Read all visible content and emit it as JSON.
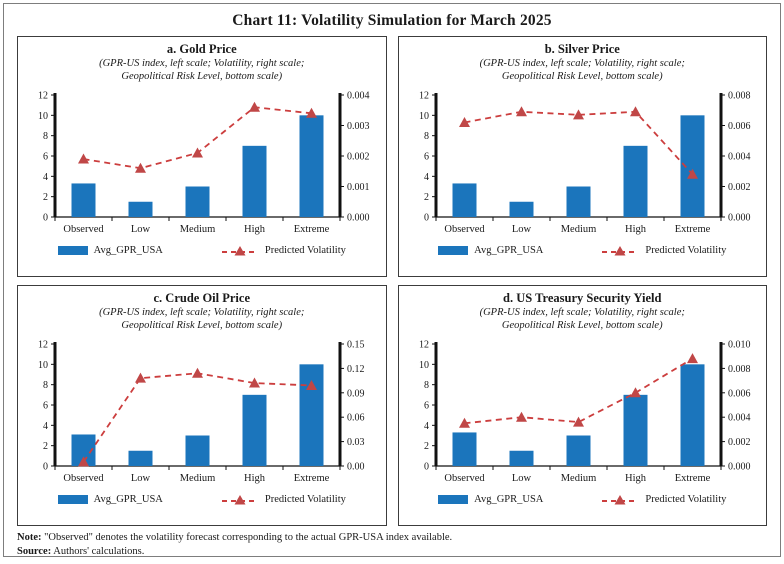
{
  "figure_title": "Chart 11: Volatility Simulation for March 2025",
  "notes": {
    "note_label": "Note:",
    "note_text": "\"Observed\" denotes the volatility forecast corresponding to the actual GPR-USA index available.",
    "source_label": "Source:",
    "source_text": "Authors' calculations."
  },
  "colors": {
    "bar_blue": "#1B75BC",
    "line_red": "#CC3E3E",
    "marker_red": "#C04747",
    "axis_black": "#111111"
  },
  "chart_data": [
    {
      "type": "bar+line",
      "title": "a. Gold Price",
      "subtitle_line1": "(GPR-US index, left scale; Volatility, right scale;",
      "subtitle_line2": "Geopolitical Risk Level, bottom scale)",
      "categories": [
        "Observed",
        "Low",
        "Medium",
        "High",
        "Extreme"
      ],
      "series": [
        {
          "name": "Avg_GPR_USA",
          "type": "bar",
          "axis": "left",
          "values": [
            3.3,
            1.5,
            3.0,
            7.0,
            10.0
          ]
        },
        {
          "name": "Predicted Volatility",
          "type": "line",
          "axis": "right",
          "values": [
            0.0019,
            0.0016,
            0.0021,
            0.0036,
            0.0034
          ]
        }
      ],
      "left_ylim": [
        0,
        12
      ],
      "left_ticks": [
        0,
        2,
        4,
        6,
        8,
        10,
        12
      ],
      "right_ylim": [
        0,
        0.004
      ],
      "right_ticks": [
        0,
        0.001,
        0.002,
        0.003,
        0.004
      ],
      "right_decimals": 3,
      "legend_bar": "Avg_GPR_USA",
      "legend_line": "Predicted Volatility"
    },
    {
      "type": "bar+line",
      "title": "b. Silver Price",
      "subtitle_line1": "(GPR-US index, left scale; Volatility, right scale;",
      "subtitle_line2": "Geopolitical Risk Level, bottom scale)",
      "categories": [
        "Observed",
        "Low",
        "Medium",
        "High",
        "Extreme"
      ],
      "series": [
        {
          "name": "Avg_GPR_USA",
          "type": "bar",
          "axis": "left",
          "values": [
            3.3,
            1.5,
            3.0,
            7.0,
            10.0
          ]
        },
        {
          "name": "Predicted Volatility",
          "type": "line",
          "axis": "right",
          "values": [
            0.0062,
            0.0069,
            0.0067,
            0.0069,
            0.0028
          ]
        }
      ],
      "left_ylim": [
        0,
        12
      ],
      "left_ticks": [
        0,
        2,
        4,
        6,
        8,
        10,
        12
      ],
      "right_ylim": [
        0,
        0.008
      ],
      "right_ticks": [
        0,
        0.002,
        0.004,
        0.006,
        0.008
      ],
      "right_decimals": 3,
      "legend_bar": "Avg_GPR_USA",
      "legend_line": "Predicted Volatility"
    },
    {
      "type": "bar+line",
      "title": "c. Crude Oil Price",
      "subtitle_line1": "(GPR-US index, left scale; Volatility, right scale;",
      "subtitle_line2": "Geopolitical Risk Level, bottom scale)",
      "categories": [
        "Observed",
        "Low",
        "Medium",
        "High",
        "Extreme"
      ],
      "series": [
        {
          "name": "Avg_GPR_USA",
          "type": "bar",
          "axis": "left",
          "values": [
            3.1,
            1.5,
            3.0,
            7.0,
            10.0
          ]
        },
        {
          "name": "Predicted Volatility",
          "type": "line",
          "axis": "right",
          "values": [
            0.005,
            0.108,
            0.114,
            0.102,
            0.099
          ]
        }
      ],
      "left_ylim": [
        0,
        12
      ],
      "left_ticks": [
        0,
        2,
        4,
        6,
        8,
        10,
        12
      ],
      "right_ylim": [
        0,
        0.15
      ],
      "right_ticks": [
        0,
        0.03,
        0.06,
        0.09,
        0.12,
        0.15
      ],
      "right_decimals": 2,
      "legend_bar": "Avg_GPR_USA",
      "legend_line": "Predicted Volatility"
    },
    {
      "type": "bar+line",
      "title": "d. US Treasury Security Yield",
      "subtitle_line1": "(GPR-US index, left scale; Volatility, right scale;",
      "subtitle_line2": "Geopolitical Risk Level, bottom scale)",
      "categories": [
        "Observed",
        "Low",
        "Medium",
        "High",
        "Extreme"
      ],
      "series": [
        {
          "name": "Avg_GPR_USA",
          "type": "bar",
          "axis": "left",
          "values": [
            3.3,
            1.5,
            3.0,
            7.0,
            10.0
          ]
        },
        {
          "name": "Predicted Volatility",
          "type": "line",
          "axis": "right",
          "values": [
            0.0035,
            0.004,
            0.0036,
            0.006,
            0.0088
          ]
        }
      ],
      "left_ylim": [
        0,
        12
      ],
      "left_ticks": [
        0,
        2,
        4,
        6,
        8,
        10,
        12
      ],
      "right_ylim": [
        0,
        0.01
      ],
      "right_ticks": [
        0,
        0.002,
        0.004,
        0.006,
        0.008,
        0.01
      ],
      "right_decimals": 3,
      "legend_bar": "Avg_GPR_USA",
      "legend_line": "Predicted Volatility"
    }
  ]
}
